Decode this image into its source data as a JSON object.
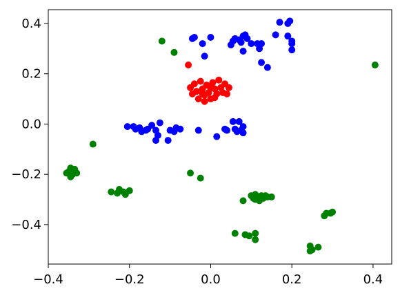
{
  "chart_data": {
    "type": "scatter",
    "xlim": [
      -0.4,
      0.446
    ],
    "ylim": [
      -0.557,
      0.455
    ],
    "xticks": [
      {
        "value": -0.4,
        "label": "−0.4"
      },
      {
        "value": -0.2,
        "label": "−0.2"
      },
      {
        "value": 0,
        "label": "0.0"
      },
      0.2,
      0.4
    ],
    "yticks": [
      {
        "value": -0.4,
        "label": "−0.4"
      },
      {
        "value": -0.2,
        "label": "−0.2"
      },
      {
        "value": 0,
        "label": "0.0"
      },
      0.2,
      0.4
    ],
    "series": [
      {
        "color": "#0000ff",
        "x": [
          -0.045,
          -0.04,
          -0.02,
          0.0,
          -0.015,
          0.05,
          0.055,
          0.06,
          0.07,
          0.075,
          0.08,
          0.085,
          0.09,
          0.08,
          0.1,
          0.115,
          0.12,
          0.125,
          0.125,
          0.14,
          0.16,
          0.17,
          0.19,
          0.195,
          0.19,
          0.2,
          0.2,
          0.2,
          -0.205,
          -0.19,
          -0.185,
          -0.175,
          -0.17,
          -0.16,
          -0.155,
          -0.145,
          -0.135,
          -0.13,
          -0.135,
          -0.125,
          -0.105,
          -0.1,
          -0.09,
          -0.085,
          -0.075,
          -0.03,
          0.015,
          0.035,
          0.04,
          0.055,
          0.06,
          0.065,
          0.07,
          0.075,
          0.08,
          0.08
        ],
        "y": [
          0.34,
          0.345,
          0.32,
          0.345,
          0.27,
          0.315,
          0.33,
          0.34,
          0.335,
          0.325,
          0.35,
          0.355,
          0.34,
          0.29,
          0.32,
          0.32,
          0.3,
          0.32,
          0.245,
          0.225,
          0.355,
          0.405,
          0.4,
          0.41,
          0.35,
          0.32,
          0.295,
          0.33,
          -0.01,
          -0.01,
          -0.02,
          -0.015,
          -0.03,
          -0.025,
          -0.02,
          -0.005,
          -0.025,
          -0.045,
          -0.065,
          0.005,
          -0.065,
          -0.025,
          -0.03,
          -0.015,
          -0.02,
          -0.025,
          -0.05,
          -0.02,
          -0.025,
          0.01,
          -0.02,
          -0.03,
          0.01,
          -0.025,
          -0.01,
          -0.035
        ]
      },
      {
        "color": "#ff0000",
        "x": [
          -0.05,
          -0.045,
          -0.04,
          -0.035,
          -0.03,
          -0.025,
          -0.02,
          -0.015,
          -0.01,
          -0.005,
          0.0,
          0.005,
          0.01,
          0.015,
          0.02,
          0.025,
          0.03,
          0.035,
          -0.02,
          0.0,
          -0.055,
          0.045,
          0.04,
          -0.015,
          0.01
        ],
        "y": [
          0.145,
          0.12,
          0.16,
          0.13,
          0.1,
          0.17,
          0.14,
          0.115,
          0.155,
          0.125,
          0.1,
          0.165,
          0.14,
          0.12,
          0.175,
          0.145,
          0.125,
          0.16,
          0.12,
          0.145,
          0.235,
          0.145,
          0.12,
          0.09,
          0.105
        ]
      },
      {
        "color": "#008000",
        "x": [
          -0.12,
          -0.09,
          0.405,
          -0.29,
          -0.35,
          -0.345,
          -0.34,
          -0.335,
          -0.345,
          -0.33,
          -0.355,
          -0.34,
          -0.245,
          -0.225,
          -0.23,
          -0.21,
          -0.2,
          -0.215,
          -0.05,
          -0.025,
          0.08,
          0.1,
          0.105,
          0.11,
          0.115,
          0.12,
          0.125,
          0.13,
          0.135,
          0.14,
          0.15,
          0.11,
          0.06,
          0.085,
          0.095,
          0.11,
          0.11,
          0.245,
          0.25,
          0.265,
          0.245,
          0.28,
          0.285,
          0.295,
          0.3
        ],
        "y": [
          0.33,
          0.285,
          0.235,
          -0.08,
          -0.19,
          -0.175,
          -0.2,
          -0.18,
          -0.21,
          -0.195,
          -0.195,
          -0.185,
          -0.27,
          -0.26,
          -0.275,
          -0.28,
          -0.265,
          -0.27,
          -0.195,
          -0.215,
          -0.305,
          -0.285,
          -0.295,
          -0.28,
          -0.29,
          -0.305,
          -0.285,
          -0.295,
          -0.285,
          -0.29,
          -0.29,
          -0.3,
          -0.435,
          -0.44,
          -0.445,
          -0.435,
          -0.46,
          -0.485,
          -0.5,
          -0.49,
          -0.505,
          -0.365,
          -0.355,
          -0.355,
          -0.35
        ]
      }
    ]
  }
}
